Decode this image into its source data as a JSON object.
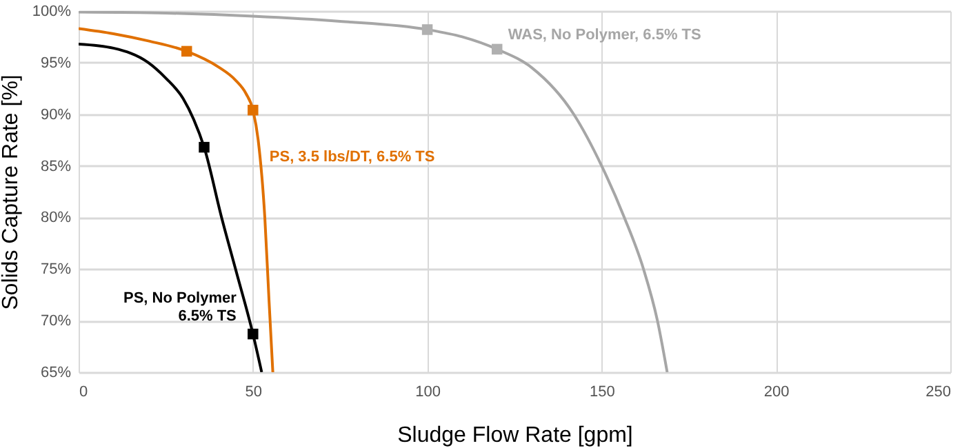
{
  "chart_data": {
    "type": "line",
    "xlabel": "Sludge Flow Rate [gpm]",
    "ylabel": "Solids Capture Rate [%]",
    "series": [
      {
        "name": "PS, No Polymer\n6.5% TS",
        "color": "#000000",
        "marker": "none",
        "x": [
          0,
          10,
          20,
          25,
          30,
          33,
          36,
          41,
          45,
          50,
          52.5
        ],
        "values": [
          96.8,
          96.4,
          95,
          93.5,
          91.5,
          89.5,
          86.8,
          80,
          75,
          68.7,
          65
        ]
      },
      {
        "name": "PS, 3.5 lbs/DT, 6.5% TS",
        "color": "#e07000",
        "marker": "none",
        "x": [
          0,
          10,
          20,
          31,
          40,
          45,
          48,
          50,
          51.5,
          53.4,
          54.6,
          55.7
        ],
        "values": [
          98.3,
          97.8,
          97.1,
          96.1,
          94.6,
          93.3,
          92,
          90.4,
          87.5,
          80,
          72,
          65
        ]
      },
      {
        "name": "WAS, No Polymer, 6.5% TS",
        "color": "#a6a6a6",
        "marker": "none",
        "x": [
          0,
          25,
          50,
          75,
          100,
          110,
          120,
          130,
          142,
          150,
          156.5,
          162,
          166,
          168.8
        ],
        "values": [
          99.9,
          99.8,
          99.5,
          99,
          98.2,
          97.5,
          96.3,
          94.5,
          90,
          85,
          80,
          75,
          70,
          65
        ]
      },
      {
        "type": "scatter",
        "color": "#000000",
        "x": [
          36,
          50
        ],
        "values": [
          86.8,
          68.7
        ]
      },
      {
        "type": "scatter",
        "color": "#e07000",
        "x": [
          31,
          50
        ],
        "values": [
          96.1,
          90.4
        ]
      },
      {
        "type": "scatter",
        "color": "#b0b0b0",
        "x": [
          100,
          120
        ],
        "values": [
          98.2,
          96.3
        ]
      }
    ],
    "xlim": [
      0,
      250
    ],
    "xticks": [
      0,
      50,
      100,
      150,
      200,
      250
    ],
    "ylim": [
      65,
      100
    ],
    "yticks": [
      {
        "value": 65,
        "label": "65%"
      },
      {
        "value": 70,
        "label": "70%"
      },
      {
        "value": 75,
        "label": "75%"
      },
      {
        "value": 80,
        "label": "80%"
      },
      {
        "value": 85,
        "label": "85%"
      },
      {
        "value": 90,
        "label": "90%"
      },
      {
        "value": 95,
        "label": "95%"
      },
      {
        "value": 100,
        "label": "100%"
      }
    ],
    "grid": true,
    "marker": "square",
    "line_style": "solid"
  }
}
